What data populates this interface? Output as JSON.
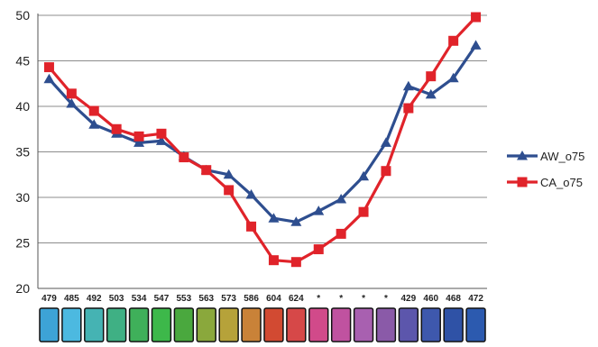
{
  "chart_data": {
    "type": "line",
    "x_labels": [
      "479",
      "485",
      "492",
      "503",
      "534",
      "547",
      "553",
      "563",
      "573",
      "586",
      "604",
      "624",
      "*",
      "*",
      "*",
      "*",
      "429",
      "460",
      "468",
      "472"
    ],
    "ylim": [
      20,
      50
    ],
    "yticks": [
      20,
      25,
      30,
      35,
      40,
      45,
      50
    ],
    "grid": true,
    "legend_position": "right",
    "series": [
      {
        "name": "AW_o75",
        "color": "#2e4e8f",
        "marker": "triangle",
        "values": [
          43.0,
          40.3,
          38.0,
          37.0,
          36.0,
          36.2,
          34.5,
          33.0,
          32.5,
          30.3,
          27.7,
          27.3,
          28.5,
          29.8,
          32.3,
          36.0,
          42.2,
          41.3,
          43.1,
          46.7
        ]
      },
      {
        "name": "CA_o75",
        "color": "#e0232a",
        "marker": "square",
        "values": [
          44.3,
          41.4,
          39.5,
          37.5,
          36.7,
          37.0,
          34.4,
          33.0,
          30.8,
          26.8,
          23.1,
          22.9,
          24.3,
          26.0,
          28.4,
          32.9,
          39.8,
          43.3,
          47.2,
          49.8
        ]
      }
    ],
    "color_swatches": [
      "#3da3d6",
      "#4cb9e0",
      "#45b3b3",
      "#3fb084",
      "#3fb05a",
      "#3db84a",
      "#4aa83e",
      "#8aa83c",
      "#b6a23a",
      "#c98238",
      "#d24a32",
      "#d64848",
      "#d14a8a",
      "#c052a0",
      "#a860b0",
      "#8a5aa8",
      "#5c56ac",
      "#3e58ad",
      "#2f52a6",
      "#2c5aaf"
    ]
  }
}
